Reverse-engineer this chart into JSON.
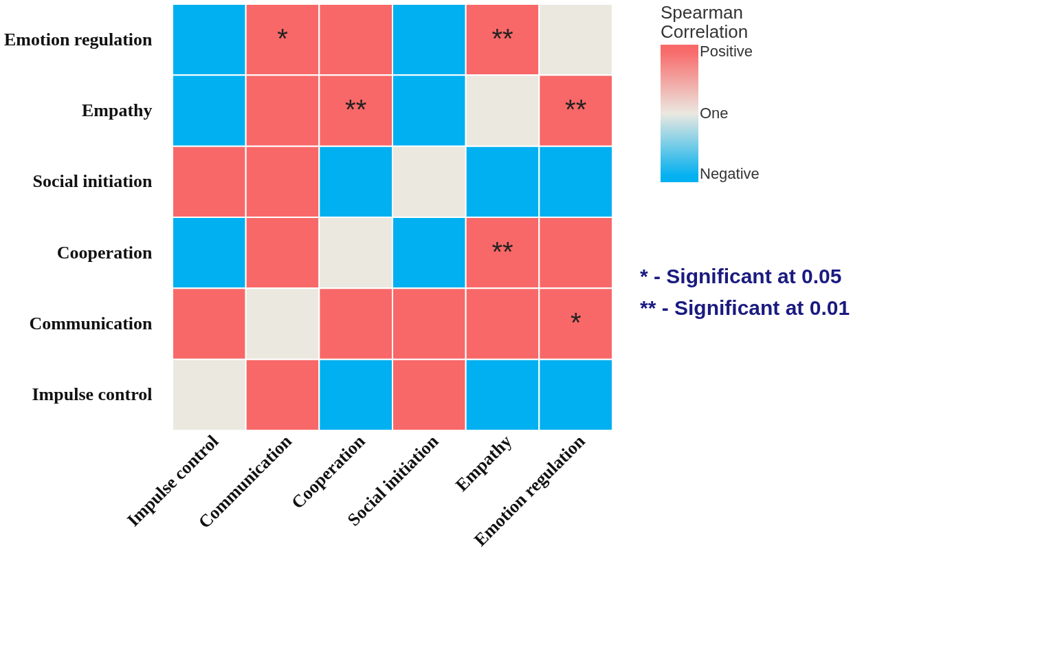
{
  "chart_data": {
    "type": "heatmap",
    "clabel": "Spearman Correlation",
    "categories": [
      "Impulse control",
      "Communication",
      "Cooperation",
      "Social initiation",
      "Empathy",
      "Emotion regulation"
    ],
    "y_categories": [
      "Emotion regulation",
      "Empathy",
      "Social initiation",
      "Cooperation",
      "Communication",
      "Impulse control"
    ],
    "clim": [
      0,
      2
    ],
    "cticks": [
      {
        "value": 0,
        "label": "Negative"
      },
      {
        "value": 1,
        "label": "One"
      },
      {
        "value": 2,
        "label": "Positive"
      }
    ],
    "cells": [
      [
        0,
        2,
        2,
        0,
        2,
        1
      ],
      [
        0,
        2,
        2,
        0,
        1,
        2
      ],
      [
        2,
        2,
        0,
        1,
        0,
        0
      ],
      [
        0,
        2,
        1,
        0,
        2,
        2
      ],
      [
        2,
        1,
        2,
        2,
        2,
        2
      ],
      [
        1,
        2,
        0,
        2,
        0,
        0
      ]
    ],
    "cell_labels": [
      [
        null,
        "*",
        null,
        null,
        "**",
        null
      ],
      [
        null,
        null,
        "**",
        null,
        null,
        "**"
      ],
      [
        null,
        null,
        null,
        null,
        null,
        null
      ],
      [
        null,
        null,
        null,
        null,
        "**",
        null
      ],
      [
        null,
        null,
        null,
        null,
        null,
        "*"
      ],
      [
        null,
        null,
        null,
        null,
        null,
        null
      ]
    ],
    "annotations": [
      "* - Significant at 0.05",
      "** - Significant at 0.01"
    ]
  }
}
